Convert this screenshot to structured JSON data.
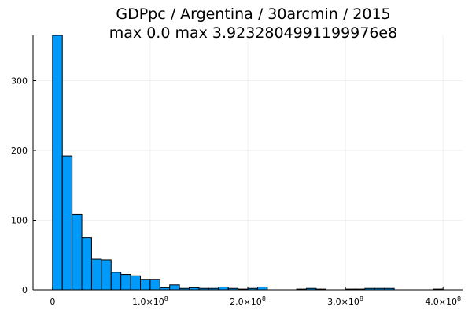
{
  "chart_data": {
    "type": "bar",
    "title": "GDPpc / Argentina / 30arcmin / 2015",
    "subtitle": "max 0.0  max 3.9232804991199976e8",
    "xlabel": "",
    "ylabel": "",
    "xlim": [
      -20000000,
      420000000
    ],
    "ylim": [
      0,
      365
    ],
    "grid": true,
    "legend": "none",
    "bar_color": "#009AFA",
    "bin_width": 10000000,
    "bin_starts": [
      0,
      10000000,
      20000000,
      30000000,
      40000000,
      50000000,
      60000000,
      70000000,
      80000000,
      90000000,
      100000000,
      110000000,
      120000000,
      130000000,
      140000000,
      150000000,
      160000000,
      170000000,
      180000000,
      190000000,
      200000000,
      210000000,
      250000000,
      260000000,
      270000000,
      300000000,
      310000000,
      320000000,
      330000000,
      340000000,
      390000000
    ],
    "values": [
      365,
      192,
      108,
      75,
      44,
      43,
      25,
      22,
      20,
      15,
      15,
      3,
      7,
      2,
      3,
      2,
      2,
      4,
      2,
      1,
      2,
      4,
      1,
      2,
      1,
      1,
      1,
      2,
      2,
      2,
      1
    ],
    "x_ticks": [
      {
        "value": 0,
        "label": "0",
        "exp": ""
      },
      {
        "value": 100000000,
        "label": "1.0×10",
        "exp": "8"
      },
      {
        "value": 200000000,
        "label": "2.0×10",
        "exp": "8"
      },
      {
        "value": 300000000,
        "label": "3.0×10",
        "exp": "8"
      },
      {
        "value": 400000000,
        "label": "4.0×10",
        "exp": "8"
      }
    ],
    "y_ticks": [
      {
        "value": 0,
        "label": "0"
      },
      {
        "value": 100,
        "label": "100"
      },
      {
        "value": 200,
        "label": "200"
      },
      {
        "value": 300,
        "label": "300"
      }
    ]
  }
}
